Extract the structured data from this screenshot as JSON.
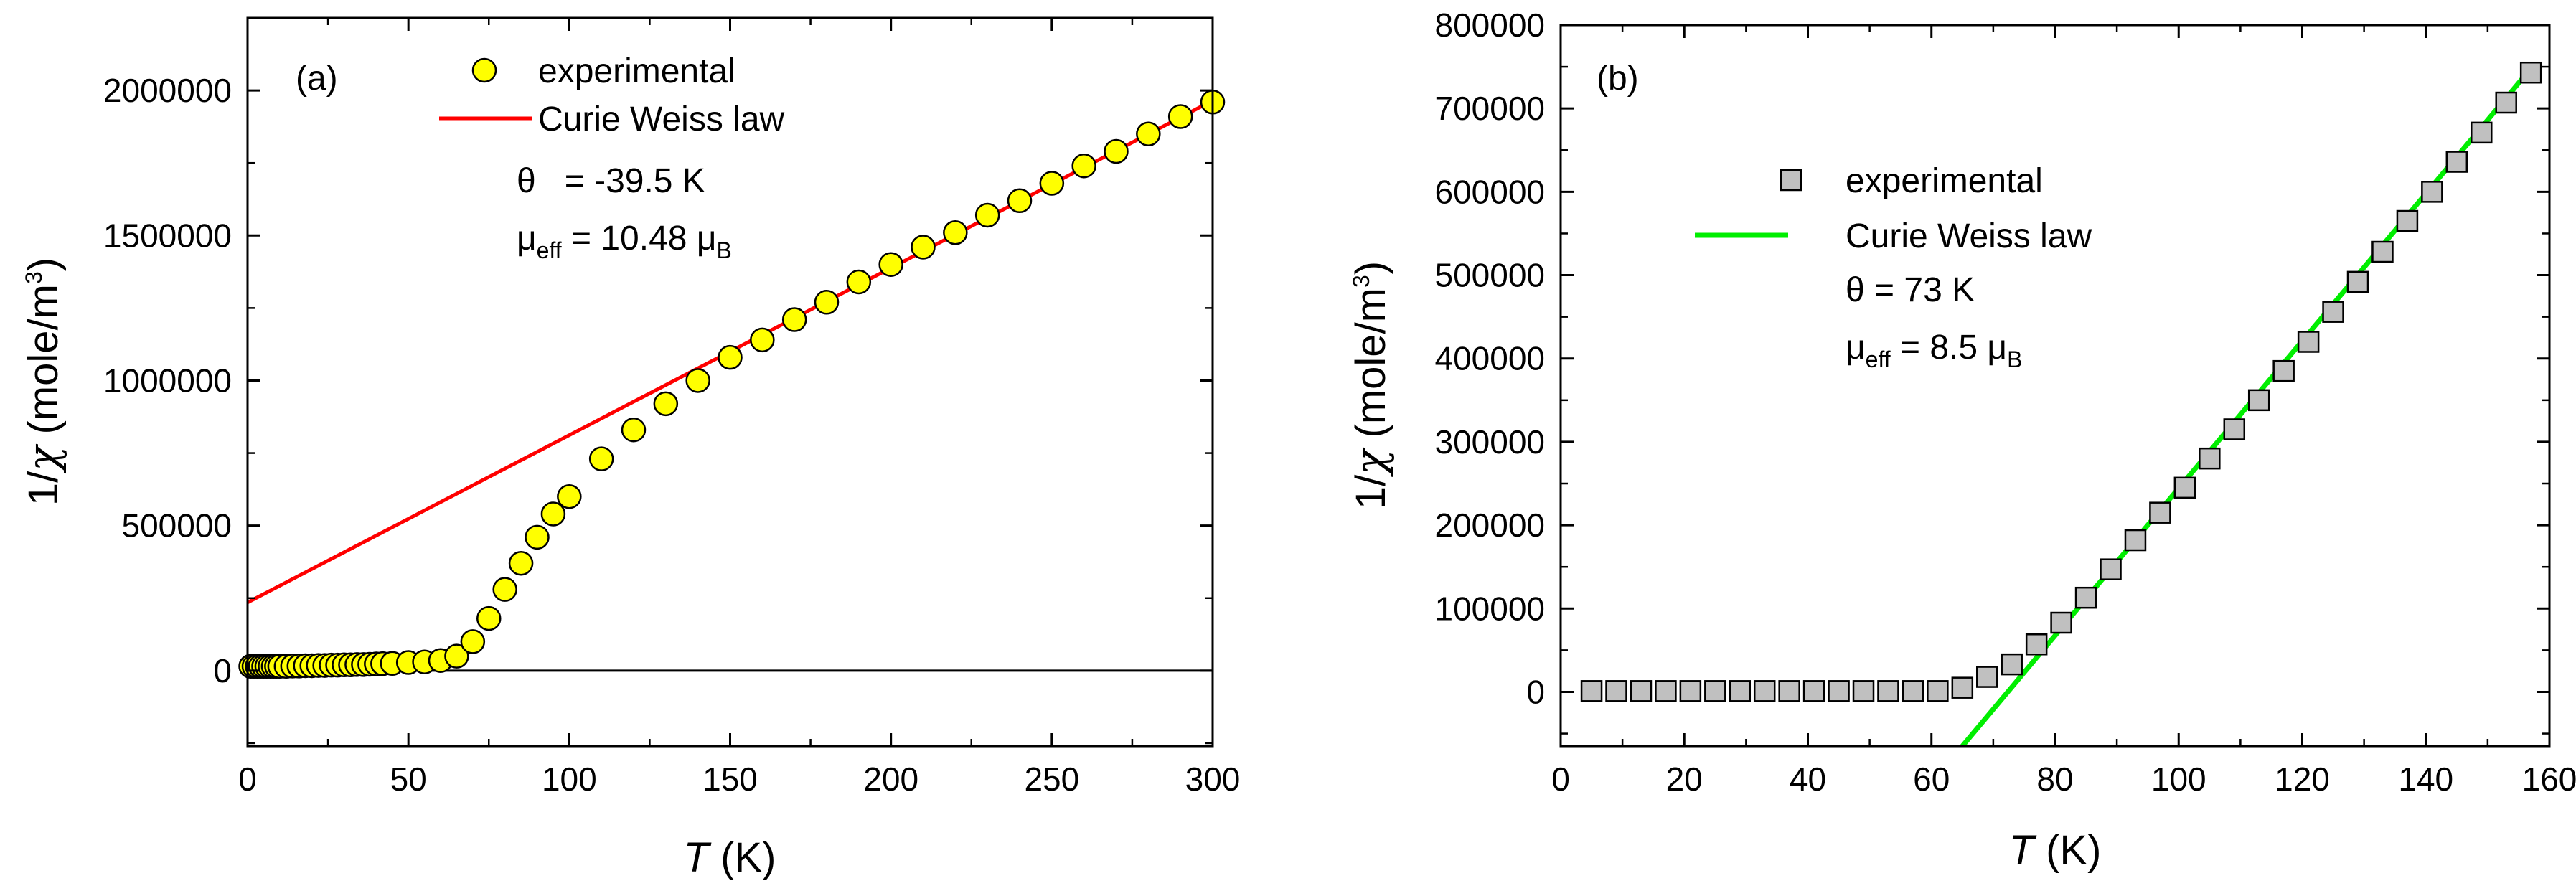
{
  "chart_data": [
    {
      "type": "scatter",
      "panel_label": "(a)",
      "xlabel_symbol": "T",
      "xlabel_unit": " (K)",
      "ylabel_prefix": "1/",
      "ylabel_symbol": "χ",
      "ylabel_unit": " (mole/m",
      "ylabel_exp": "3",
      "ylabel_close": ")",
      "xlim": [
        0,
        300
      ],
      "ylim": [
        -260000,
        2250000
      ],
      "xticks": [
        0,
        50,
        100,
        150,
        200,
        250,
        300
      ],
      "yticks": [
        0,
        500000,
        1000000,
        1500000,
        2000000
      ],
      "x_tick_labels": [
        "0",
        "50",
        "100",
        "150",
        "200",
        "250",
        "300"
      ],
      "y_tick_labels": [
        "0",
        "500000",
        "1000000",
        "1500000",
        "2000000"
      ],
      "legend_position": "top-center",
      "grid": false,
      "zero_line": true,
      "series": [
        {
          "name": "experimental",
          "marker": "circle",
          "color": "#ffff00",
          "x": [
            1,
            2,
            3,
            4,
            5,
            6,
            7,
            8,
            9,
            10,
            12,
            14,
            16,
            18,
            20,
            22,
            24,
            26,
            28,
            30,
            32,
            34,
            36,
            38,
            40,
            42,
            45,
            50,
            55,
            60,
            65,
            70,
            75,
            80,
            85,
            90,
            95,
            100,
            110,
            120,
            130,
            140,
            150,
            160,
            170,
            180,
            190,
            200,
            210,
            220,
            230,
            240,
            250,
            260,
            270,
            280,
            290,
            300
          ],
          "y": [
            15000,
            15000,
            15000,
            15000,
            15000,
            15000,
            15000,
            15000,
            15000,
            15000,
            15000,
            16000,
            16000,
            17000,
            17000,
            18000,
            18000,
            19000,
            19000,
            20000,
            20000,
            21000,
            21000,
            22000,
            23000,
            24000,
            25000,
            28000,
            30000,
            35000,
            50000,
            100000,
            180000,
            280000,
            370000,
            460000,
            540000,
            600000,
            730000,
            830000,
            920000,
            1000000,
            1080000,
            1140000,
            1210000,
            1270000,
            1340000,
            1400000,
            1460000,
            1510000,
            1570000,
            1620000,
            1680000,
            1740000,
            1790000,
            1850000,
            1910000,
            1960000
          ]
        },
        {
          "name": "Curie Weiss law",
          "type": "line",
          "color": "#ff0000",
          "x": [
            0,
            300
          ],
          "y": [
            235000,
            1965000
          ]
        }
      ],
      "annotations": {
        "theta_symbol": "θ",
        "theta_value": "   = -39.5 K",
        "mu_symbol": "μ",
        "mu_sub": "eff",
        "mu_value": " = 10.48 μ",
        "mu_unit_sub": "B"
      }
    },
    {
      "type": "scatter",
      "panel_label": "(b)",
      "xlabel_symbol": "T",
      "xlabel_unit": " (K)",
      "ylabel_prefix": "1/",
      "ylabel_symbol": "χ",
      "ylabel_unit": " (mole/m",
      "ylabel_exp": "3",
      "ylabel_close": ")",
      "xlim": [
        0,
        160
      ],
      "ylim": [
        -65000,
        800000
      ],
      "xticks": [
        0,
        20,
        40,
        60,
        80,
        100,
        120,
        140,
        160
      ],
      "yticks": [
        0,
        100000,
        200000,
        300000,
        400000,
        500000,
        600000,
        700000,
        800000
      ],
      "x_tick_labels": [
        "0",
        "20",
        "40",
        "60",
        "80",
        "100",
        "120",
        "140",
        "160"
      ],
      "y_tick_labels": [
        "0",
        "100000",
        "200000",
        "300000",
        "400000",
        "500000",
        "600000",
        "700000",
        "800000"
      ],
      "legend_position": "upper-left",
      "grid": false,
      "zero_line": false,
      "series": [
        {
          "name": "experimental",
          "marker": "square",
          "color": "#c0c0c0",
          "x": [
            5,
            9,
            13,
            17,
            21,
            25,
            29,
            33,
            37,
            41,
            45,
            49,
            53,
            57,
            61,
            65,
            69,
            73,
            77,
            81,
            85,
            89,
            93,
            97,
            101,
            105,
            109,
            113,
            117,
            121,
            125,
            129,
            133,
            137,
            141,
            145,
            149,
            153,
            157
          ],
          "y": [
            1000,
            1000,
            1000,
            1000,
            1000,
            1000,
            1000,
            1000,
            1000,
            1000,
            1000,
            1000,
            1000,
            1000,
            1000,
            5000,
            18000,
            33000,
            57000,
            83000,
            113000,
            147000,
            182000,
            215000,
            245000,
            280000,
            315000,
            350000,
            385000,
            420000,
            456000,
            492000,
            528000,
            565000,
            600000,
            636000,
            671000,
            707000,
            743000
          ]
        },
        {
          "name": "Curie Weiss law",
          "type": "line",
          "color": "#00ee00",
          "x": [
            65,
            157
          ],
          "y": [
            -65000,
            748000
          ]
        }
      ],
      "annotations": {
        "theta_symbol": "θ",
        "theta_value": " = 73 K",
        "mu_symbol": "μ",
        "mu_sub": "eff",
        "mu_value": " = 8.5 μ",
        "mu_unit_sub": "B"
      }
    }
  ]
}
